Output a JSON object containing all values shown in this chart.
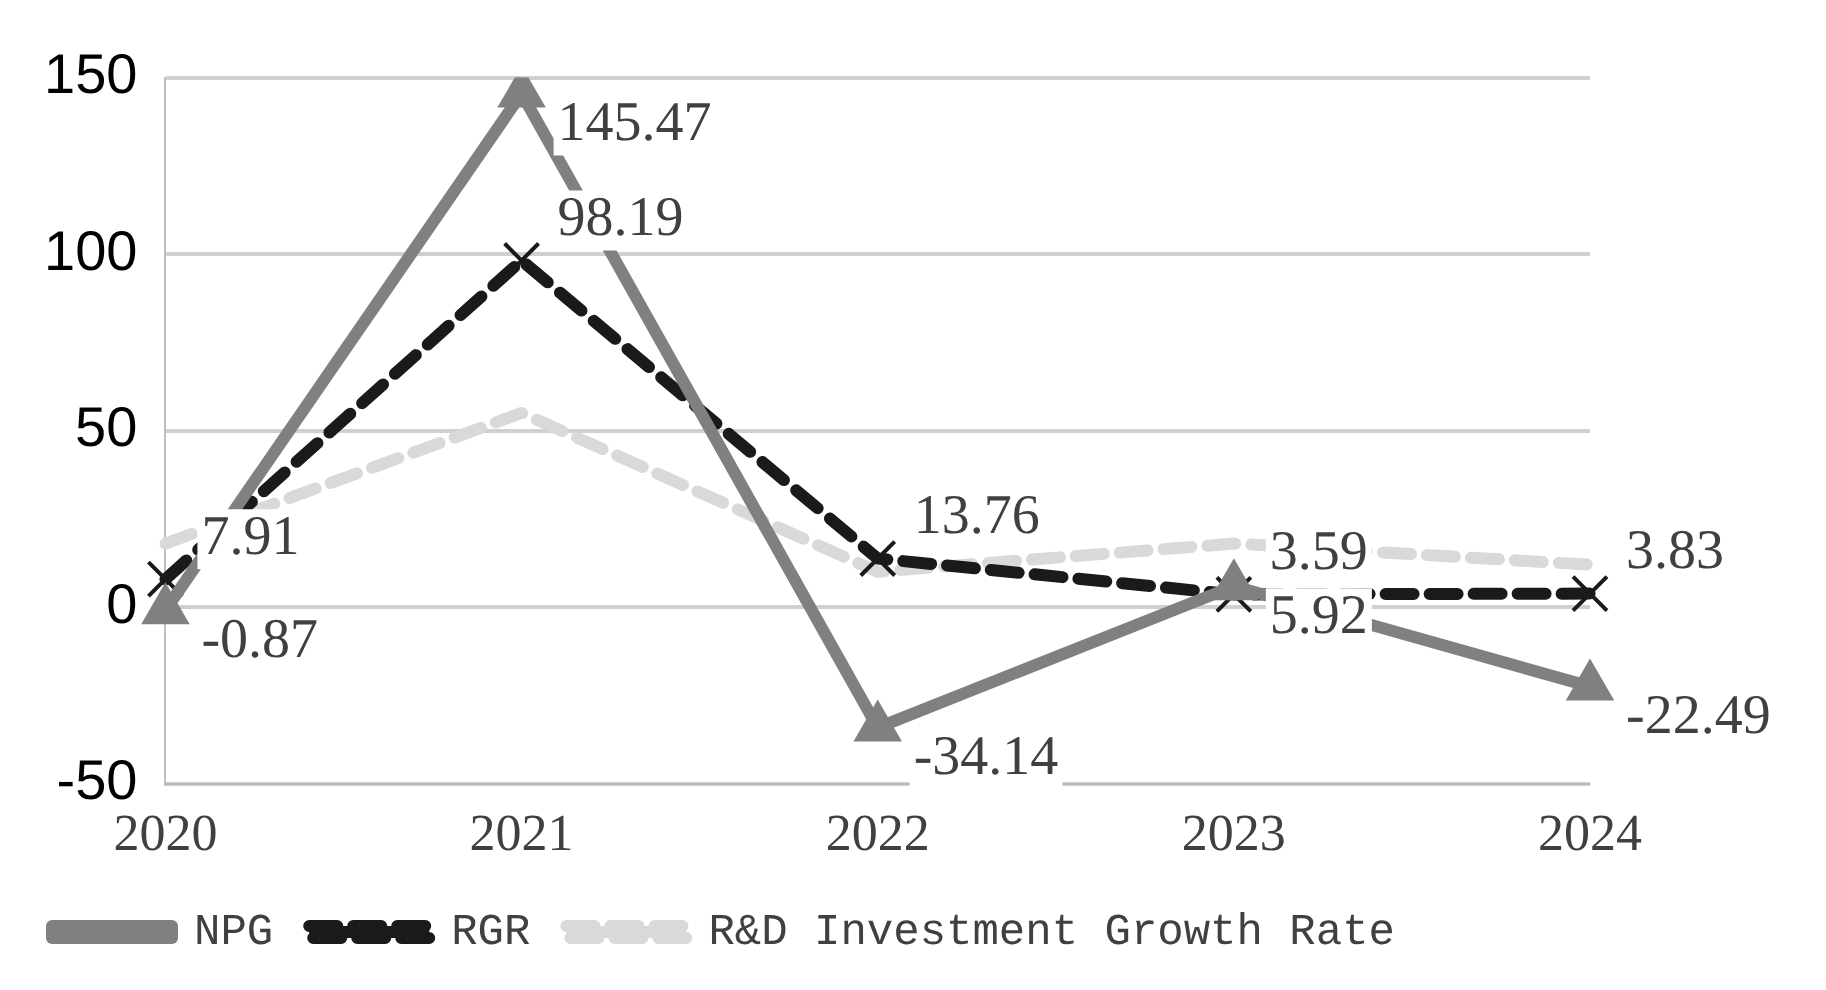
{
  "chart_data": {
    "type": "line",
    "categories": [
      "2020",
      "2021",
      "2022",
      "2023",
      "2024"
    ],
    "series": [
      {
        "name": "NPG",
        "color": "#808080",
        "marker": "triangle",
        "line_style": "solid",
        "values": [
          -0.87,
          145.47,
          -34.14,
          5.92,
          -22.49
        ],
        "value_labels": [
          "-0.87",
          "145.47",
          "-34.14",
          "5.92",
          "-22.49"
        ]
      },
      {
        "name": "RGR",
        "color": "#1a1a1a",
        "marker": "cross",
        "line_style": "dashed",
        "values": [
          7.91,
          98.19,
          13.76,
          3.59,
          3.83
        ],
        "value_labels": [
          "7.91",
          "98.19",
          "13.76",
          "3.59",
          "3.83"
        ]
      },
      {
        "name": "R&D Investment Growth Rate",
        "color": "#d9d9d9",
        "marker": "none",
        "line_style": "dashed",
        "values": [
          18,
          55,
          10,
          18,
          12
        ]
      }
    ],
    "ylim": [
      -50,
      150
    ],
    "yticks": [
      -50,
      0,
      50,
      100,
      150
    ],
    "grid": "y",
    "legend": "bottom"
  }
}
